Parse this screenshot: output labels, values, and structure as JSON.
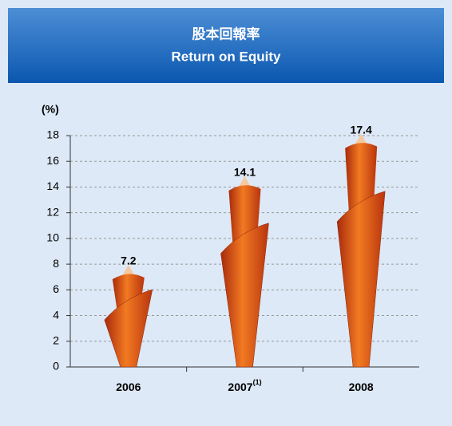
{
  "chart_data": {
    "type": "bar",
    "title": "股本回報率",
    "subtitle": "Return on Equity",
    "y_label": "(%)",
    "categories": [
      "2006",
      "2007",
      "2008"
    ],
    "category_notes": [
      null,
      "(1)",
      null
    ],
    "values": [
      7.2,
      14.1,
      17.4
    ],
    "color": "#e8561c",
    "ylim": [
      0,
      18
    ],
    "yticks": [
      0,
      2,
      4,
      6,
      8,
      10,
      12,
      14,
      16,
      18
    ],
    "grid": true
  }
}
